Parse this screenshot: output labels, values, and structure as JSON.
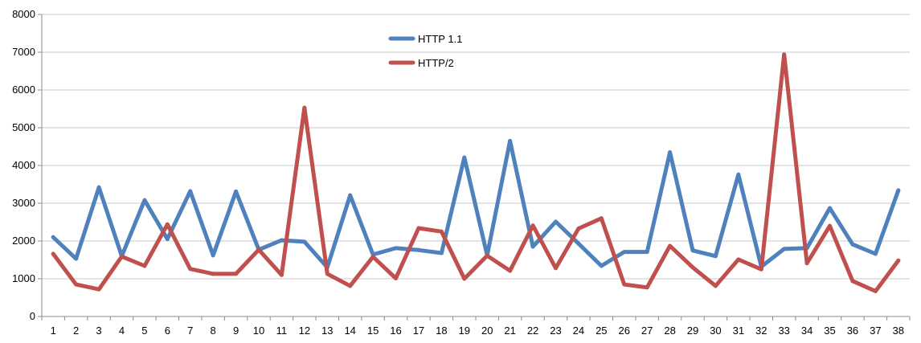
{
  "chart_data": {
    "type": "line",
    "title": "",
    "xlabel": "",
    "ylabel": "",
    "categories": [
      "1",
      "2",
      "3",
      "4",
      "5",
      "6",
      "7",
      "8",
      "9",
      "10",
      "11",
      "12",
      "13",
      "14",
      "15",
      "16",
      "17",
      "18",
      "19",
      "20",
      "21",
      "22",
      "23",
      "24",
      "25",
      "26",
      "27",
      "28",
      "29",
      "30",
      "31",
      "32",
      "33",
      "34",
      "35",
      "36",
      "37",
      "38"
    ],
    "ylim": [
      0,
      8000
    ],
    "yticks": [
      0,
      1000,
      2000,
      3000,
      4000,
      5000,
      6000,
      7000,
      8000
    ],
    "grid": true,
    "legend_position": "top-center",
    "series": [
      {
        "name": "HTTP 1.1",
        "color": "#4F81BD",
        "values": [
          2100,
          1530,
          3420,
          1600,
          3080,
          2050,
          3320,
          1620,
          3310,
          1770,
          2020,
          1980,
          1300,
          3210,
          1640,
          1810,
          1760,
          1680,
          4210,
          1620,
          4650,
          1850,
          2510,
          1930,
          1340,
          1710,
          1710,
          4350,
          1750,
          1600,
          3760,
          1320,
          1790,
          1810,
          2870,
          1910,
          1660,
          3340
        ]
      },
      {
        "name": "HTTP/2",
        "color": "#C0504D",
        "values": [
          1660,
          850,
          720,
          1590,
          1340,
          2440,
          1260,
          1130,
          1130,
          1770,
          1100,
          5530,
          1130,
          810,
          1580,
          1010,
          2340,
          2250,
          1000,
          1610,
          1210,
          2410,
          1280,
          2330,
          2600,
          850,
          770,
          1870,
          1300,
          810,
          1510,
          1250,
          6940,
          1410,
          2400,
          940,
          670,
          1480
        ]
      }
    ]
  }
}
